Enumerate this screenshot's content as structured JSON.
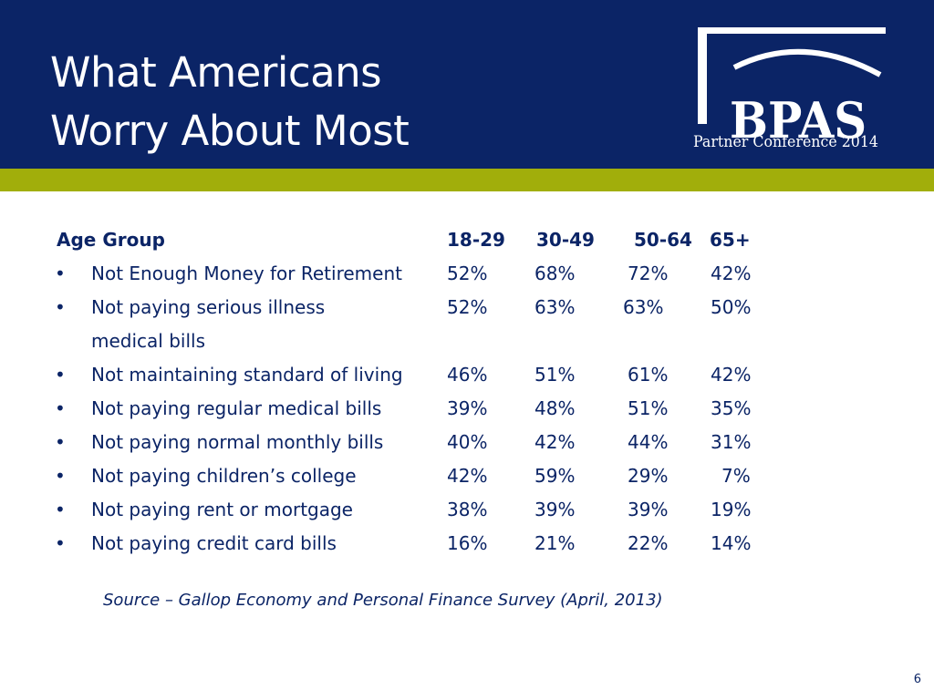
{
  "slide": {
    "title_line1": "What Americans",
    "title_line2": "Worry About Most",
    "page_number": "6",
    "colors": {
      "header_bg": "#0b2466",
      "accent_bar": "#a1ae0b",
      "text": "#0b2466"
    }
  },
  "logo": {
    "brand": "BPAS",
    "subtitle": "Partner Conference 2014"
  },
  "table": {
    "headers": [
      "Age Group",
      "18-29",
      "30-49",
      "50-64",
      "65+"
    ],
    "rows": [
      {
        "bullet": "•",
        "label": "Not Enough Money for Retirement",
        "label_cont": "",
        "values": [
          "52%",
          "68%",
          "72%",
          "42%"
        ]
      },
      {
        "bullet": "•",
        "label": "Not paying serious illness",
        "label_cont": "medical bills",
        "values": [
          "52%",
          "63%",
          "63%",
          "50%"
        ]
      },
      {
        "bullet": "•",
        "label": "Not maintaining standard of living",
        "label_cont": "",
        "values": [
          "46%",
          "51%",
          "61%",
          "42%"
        ]
      },
      {
        "bullet": "•",
        "label": "Not paying regular medical bills",
        "label_cont": "",
        "values": [
          "39%",
          "48%",
          "51%",
          "35%"
        ]
      },
      {
        "bullet": "•",
        "label": "Not paying normal monthly bills",
        "label_cont": "",
        "values": [
          "40%",
          "42%",
          "44%",
          "31%"
        ]
      },
      {
        "bullet": "•",
        "label": "Not paying children’s college",
        "label_cont": "",
        "values": [
          "42%",
          "59%",
          "29%",
          "7%"
        ]
      },
      {
        "bullet": "•",
        "label": "Not paying rent or mortgage",
        "label_cont": "",
        "values": [
          "38%",
          "39%",
          "39%",
          "19%"
        ]
      },
      {
        "bullet": "•",
        "label": "Not paying credit card bills",
        "label_cont": "",
        "values": [
          "16%",
          "21%",
          "22%",
          "14%"
        ]
      }
    ]
  },
  "source": "Source – Gallop Economy and Personal Finance Survey (April, 2013)"
}
